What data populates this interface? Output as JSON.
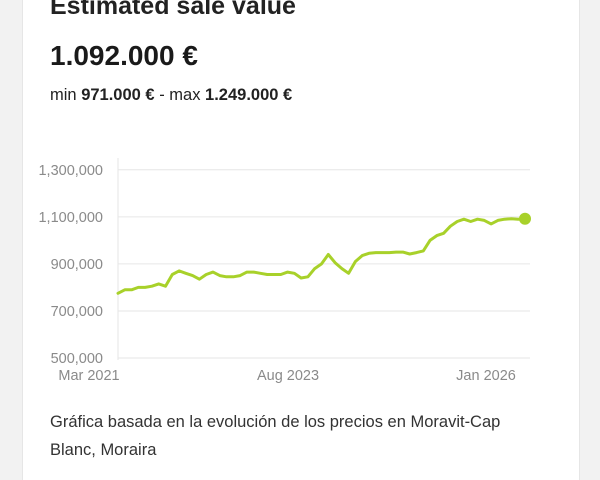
{
  "estimate": {
    "title": "Estimated sale value",
    "price": "1.092.000 €",
    "min_label": "min",
    "min_value": "971.000 €",
    "separator": "-",
    "max_label": "max",
    "max_value": "1.249.000 €"
  },
  "note": "Gráfica basada en la evolución de los precios en Moravit-Cap Blanc, Moraira",
  "colors": {
    "line": "#a8d12a",
    "grid": "#e6e6e6",
    "axis": "#8a8a8a"
  },
  "chart_data": {
    "type": "line",
    "y_ticks": [
      "1,300,000",
      "1,100,000",
      "900,000",
      "700,000",
      "500,000"
    ],
    "y_tick_values": [
      1300000,
      1100000,
      900000,
      700000,
      500000
    ],
    "ylim": [
      500000,
      1350000
    ],
    "x_ticks": [
      "Mar 2021",
      "Aug 2023",
      "Jan 2026"
    ],
    "x_tick_positions": [
      0,
      29,
      58
    ],
    "xlim": [
      0,
      60
    ],
    "series": [
      {
        "x": [
          0,
          1,
          2,
          3,
          4,
          5,
          6,
          7,
          8,
          9,
          10,
          11,
          12,
          13,
          14,
          15,
          16,
          17,
          18,
          19,
          20,
          21,
          22,
          23,
          24,
          25,
          26,
          27,
          28,
          29,
          30,
          31,
          32,
          33,
          34,
          35,
          36,
          37,
          38,
          39,
          40,
          41,
          42,
          43,
          44,
          45,
          46,
          47,
          48,
          49,
          50,
          51,
          52,
          53,
          54,
          55,
          56,
          57,
          58,
          59,
          60
        ],
        "values": [
          775000,
          790000,
          790000,
          800000,
          800000,
          805000,
          815000,
          805000,
          855000,
          870000,
          860000,
          850000,
          835000,
          855000,
          865000,
          850000,
          845000,
          845000,
          850000,
          865000,
          865000,
          860000,
          855000,
          855000,
          855000,
          865000,
          860000,
          840000,
          845000,
          880000,
          900000,
          940000,
          905000,
          880000,
          860000,
          910000,
          935000,
          945000,
          948000,
          948000,
          948000,
          950000,
          950000,
          942000,
          948000,
          955000,
          1000000,
          1020000,
          1030000,
          1060000,
          1080000,
          1090000,
          1080000,
          1090000,
          1085000,
          1070000,
          1085000,
          1090000,
          1092000,
          1090000,
          1092000
        ]
      }
    ]
  }
}
